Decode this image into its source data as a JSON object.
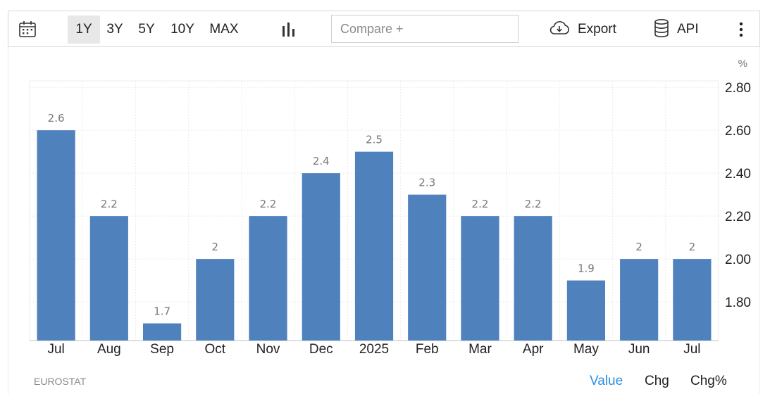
{
  "toolbar": {
    "ranges": [
      "1Y",
      "3Y",
      "5Y",
      "10Y",
      "MAX"
    ],
    "active_range": "1Y",
    "compare_placeholder": "Compare +",
    "export_label": "Export",
    "api_label": "API",
    "icons": [
      "calendar-icon",
      "bar-chart-icon",
      "cloud-download-icon",
      "database-icon",
      "more-vertical-icon"
    ]
  },
  "footer": {
    "source": "EUROSTAT",
    "modes": [
      "Value",
      "Chg",
      "Chg%"
    ],
    "active_mode": "Value"
  },
  "colors": {
    "bar": "#4f81bd",
    "active_mode": "#2e8fe0",
    "label": "#777777",
    "grid": "#ececec"
  },
  "chart_data": {
    "type": "bar",
    "unit_label": "%",
    "categories": [
      "Jul",
      "Aug",
      "Sep",
      "Oct",
      "Nov",
      "Dec",
      "2025",
      "Feb",
      "Mar",
      "Apr",
      "May",
      "Jun",
      "Jul"
    ],
    "values": [
      2.6,
      2.2,
      1.7,
      2,
      2.2,
      2.4,
      2.5,
      2.3,
      2.2,
      2.2,
      1.9,
      2,
      2
    ],
    "value_labels": [
      "2.6",
      "2.2",
      "1.7",
      "2",
      "2.2",
      "2.4",
      "2.5",
      "2.3",
      "2.2",
      "2.2",
      "1.9",
      "2",
      "2"
    ],
    "yticks": [
      1.8,
      2.0,
      2.2,
      2.4,
      2.6,
      2.8
    ],
    "ytick_labels": [
      "1.80",
      "2.00",
      "2.20",
      "2.40",
      "2.60",
      "2.80"
    ],
    "ylim": [
      1.62,
      2.83
    ],
    "y_axis_side": "right",
    "grid": true,
    "legend": false
  }
}
